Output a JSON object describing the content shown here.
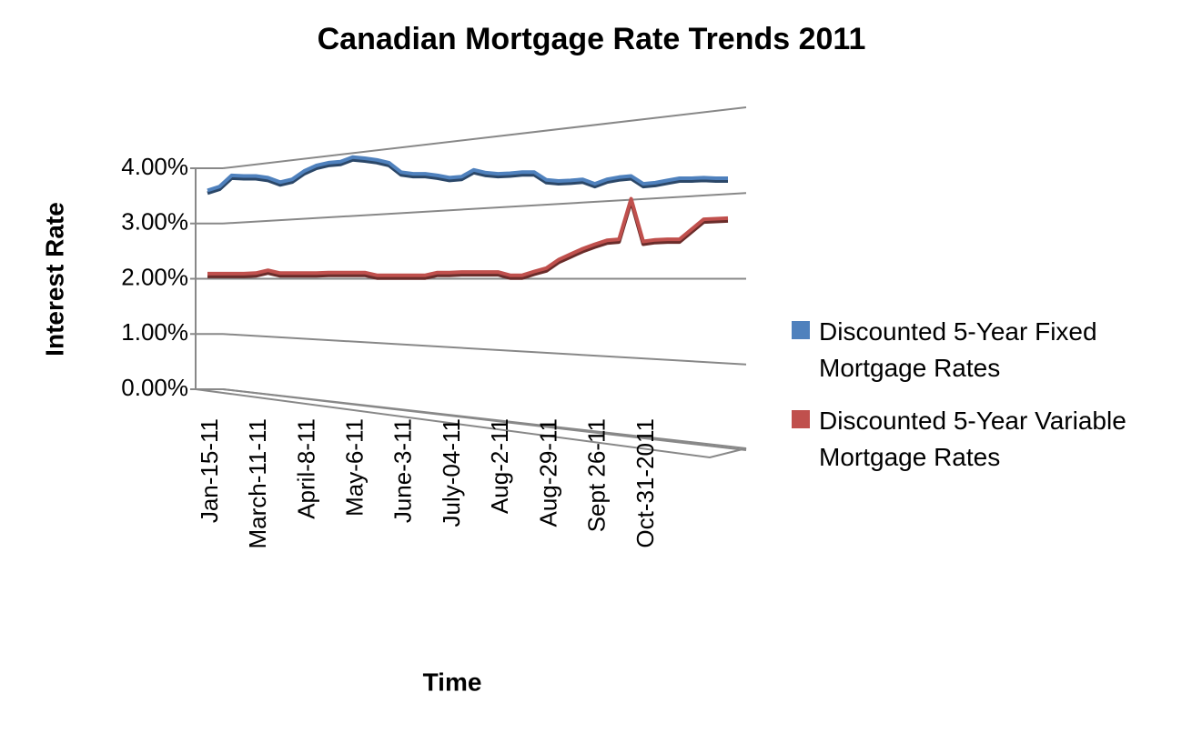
{
  "chart_data": {
    "type": "line",
    "title": "Canadian Mortgage Rate Trends 2011",
    "x_label": "Time",
    "y_label": "Interest Rate",
    "categories": [
      "Jan-15-11",
      null,
      null,
      null,
      "March-11-11",
      null,
      null,
      null,
      "April-8-11",
      null,
      null,
      null,
      "May-6-11",
      null,
      null,
      null,
      "June-3-11",
      null,
      null,
      null,
      "July-04-11",
      null,
      null,
      null,
      "Aug-2-11",
      null,
      null,
      null,
      "Aug-29-11",
      null,
      null,
      null,
      "Sept 26-11",
      null,
      null,
      null,
      "Oct-31-2011",
      null,
      null,
      null,
      null,
      null,
      null,
      null
    ],
    "series": [
      {
        "name": "Discounted 5-Year Fixed Mortgage Rates",
        "color": "#4f81bd",
        "values": [
          3.6,
          3.67,
          3.87,
          3.86,
          3.86,
          3.83,
          3.75,
          3.8,
          3.95,
          4.05,
          4.1,
          4.12,
          4.2,
          4.18,
          4.15,
          4.1,
          3.93,
          3.9,
          3.9,
          3.87,
          3.83,
          3.85,
          3.97,
          3.92,
          3.9,
          3.91,
          3.93,
          3.93,
          3.79,
          3.77,
          3.78,
          3.8,
          3.72,
          3.8,
          3.84,
          3.86,
          3.72,
          3.74,
          3.78,
          3.82,
          3.82,
          3.83,
          3.82,
          3.82
        ]
      },
      {
        "name": "Discounted 5-Year Variable Mortgage Rates",
        "color": "#c0504d",
        "values": [
          2.1,
          2.1,
          2.1,
          2.1,
          2.11,
          2.16,
          2.11,
          2.11,
          2.11,
          2.11,
          2.12,
          2.12,
          2.12,
          2.12,
          2.07,
          2.07,
          2.07,
          2.07,
          2.07,
          2.12,
          2.12,
          2.13,
          2.13,
          2.13,
          2.13,
          2.07,
          2.07,
          2.14,
          2.2,
          2.35,
          2.45,
          2.55,
          2.63,
          2.7,
          2.72,
          3.45,
          2.68,
          2.71,
          2.72,
          2.72,
          2.9,
          3.08,
          3.09,
          3.1
        ]
      }
    ],
    "ylim": [
      0,
      4
    ],
    "yticks": [
      {
        "value": 0,
        "label": "0.00%"
      },
      {
        "value": 1,
        "label": "1.00%"
      },
      {
        "value": 2,
        "label": "2.00%"
      },
      {
        "value": 3,
        "label": "3.00%"
      },
      {
        "value": 4,
        "label": "4.00%"
      }
    ],
    "grid": true,
    "legend": "right"
  }
}
